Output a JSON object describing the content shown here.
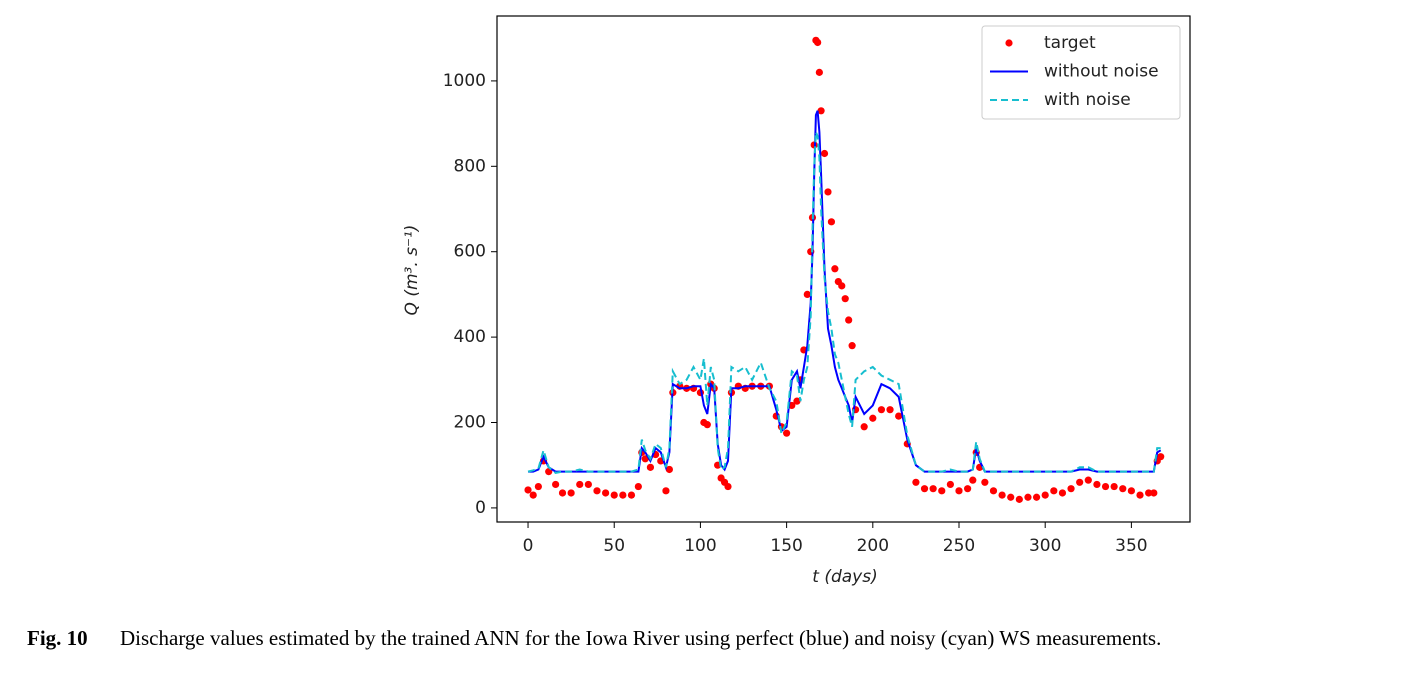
{
  "chart_data": {
    "type": "line",
    "xlabel": "t (days)",
    "ylabel": "Q (m³. s⁻¹)",
    "x": [
      0,
      3,
      6,
      9,
      12,
      16,
      20,
      25,
      30,
      35,
      40,
      45,
      50,
      55,
      60,
      64,
      66,
      68,
      71,
      74,
      77,
      80,
      82,
      84,
      88,
      92,
      96,
      100,
      102,
      104,
      106,
      108,
      110,
      112,
      114,
      116,
      118,
      122,
      126,
      130,
      135,
      140,
      144,
      147,
      150,
      153,
      156,
      158,
      160,
      162,
      164,
      165,
      166,
      167,
      168,
      169,
      170,
      172,
      174,
      176,
      178,
      180,
      182,
      184,
      186,
      188,
      190,
      195,
      200,
      205,
      210,
      215,
      220,
      225,
      230,
      235,
      240,
      245,
      250,
      255,
      258,
      260,
      262,
      265,
      270,
      275,
      280,
      285,
      290,
      295,
      300,
      305,
      310,
      315,
      320,
      325,
      330,
      335,
      340,
      345,
      350,
      355,
      360,
      363,
      365,
      367
    ],
    "series": [
      {
        "name": "target",
        "color": "#ff0000",
        "style": "markers",
        "values": [
          42,
          30,
          50,
          110,
          85,
          55,
          35,
          35,
          55,
          55,
          40,
          35,
          30,
          30,
          30,
          50,
          130,
          115,
          95,
          125,
          110,
          40,
          90,
          270,
          285,
          280,
          280,
          270,
          200,
          195,
          290,
          280,
          100,
          70,
          60,
          50,
          270,
          285,
          280,
          285,
          285,
          285,
          215,
          190,
          175,
          240,
          250,
          300,
          370,
          500,
          600,
          680,
          850,
          1095,
          1090,
          1020,
          930,
          830,
          740,
          670,
          560,
          530,
          520,
          490,
          440,
          380,
          230,
          190,
          210,
          230,
          230,
          215,
          150,
          60,
          45,
          45,
          40,
          55,
          40,
          45,
          65,
          130,
          95,
          60,
          40,
          30,
          25,
          20,
          25,
          25,
          30,
          40,
          35,
          45,
          60,
          65,
          55,
          50,
          50,
          45,
          40,
          30,
          35,
          35,
          110,
          120
        ]
      },
      {
        "name": "without noise",
        "color": "#0000ff",
        "style": "solid",
        "values": [
          85,
          85,
          90,
          120,
          95,
          85,
          85,
          85,
          85,
          85,
          85,
          85,
          85,
          85,
          85,
          85,
          140,
          130,
          110,
          140,
          130,
          95,
          130,
          290,
          280,
          280,
          285,
          285,
          240,
          220,
          290,
          280,
          150,
          100,
          90,
          110,
          280,
          280,
          285,
          285,
          285,
          285,
          230,
          180,
          190,
          300,
          320,
          280,
          330,
          380,
          480,
          600,
          780,
          920,
          930,
          880,
          780,
          560,
          420,
          380,
          330,
          300,
          280,
          260,
          240,
          200,
          260,
          220,
          240,
          290,
          280,
          260,
          160,
          100,
          85,
          85,
          85,
          85,
          85,
          85,
          90,
          140,
          110,
          85,
          85,
          85,
          85,
          85,
          85,
          85,
          85,
          85,
          85,
          85,
          90,
          90,
          85,
          85,
          85,
          85,
          85,
          85,
          85,
          85,
          130,
          135
        ]
      },
      {
        "name": "with noise",
        "color": "#17becf",
        "style": "dashed",
        "values": [
          85,
          88,
          92,
          135,
          95,
          82,
          85,
          85,
          90,
          85,
          85,
          85,
          85,
          85,
          85,
          90,
          160,
          135,
          115,
          150,
          140,
          95,
          140,
          320,
          290,
          300,
          330,
          300,
          350,
          240,
          330,
          300,
          140,
          90,
          95,
          140,
          330,
          320,
          330,
          300,
          340,
          280,
          250,
          175,
          200,
          320,
          310,
          250,
          300,
          330,
          450,
          650,
          800,
          880,
          870,
          820,
          700,
          540,
          460,
          420,
          360,
          340,
          300,
          260,
          220,
          190,
          300,
          320,
          330,
          310,
          300,
          290,
          170,
          100,
          85,
          85,
          85,
          90,
          85,
          85,
          90,
          155,
          115,
          85,
          85,
          85,
          85,
          85,
          85,
          85,
          85,
          85,
          85,
          85,
          95,
          95,
          85,
          85,
          85,
          85,
          85,
          85,
          85,
          85,
          140,
          140
        ]
      }
    ],
    "xlim": [
      -18,
      384
    ],
    "ylim": [
      -33,
      1152
    ],
    "xticks": [
      0,
      50,
      100,
      150,
      200,
      250,
      300,
      350
    ],
    "yticks": [
      0,
      200,
      400,
      600,
      800,
      1000
    ],
    "grid": false,
    "legend": "upper right"
  },
  "caption": {
    "label": "Fig. 10",
    "text": "Discharge values estimated by the trained ANN for the Iowa River using perfect (blue) and noisy (cyan) WS measurements."
  }
}
